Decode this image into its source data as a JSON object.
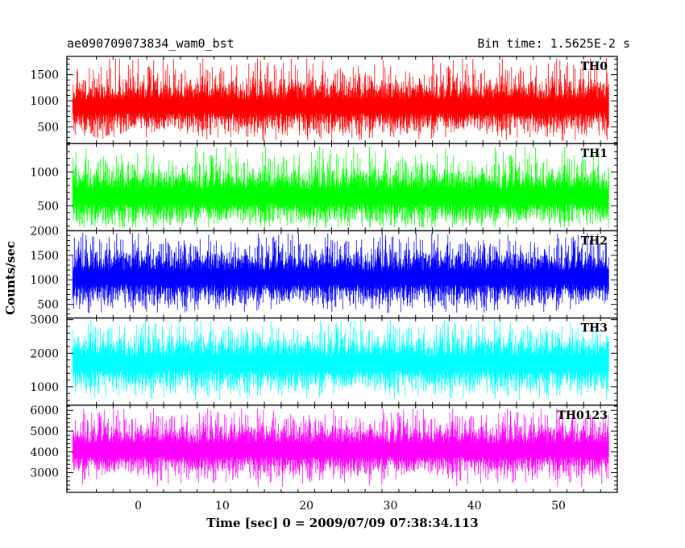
{
  "chart_data": {
    "type": "line",
    "title": "ae090709073834_wam0_bst",
    "subtitle": "Bin time: 1.5625E-2 s",
    "xlabel": "Time [sec] 0 = 2009/07/09 07:38:34.113",
    "ylabel": "Counts/sec",
    "xlim": [
      -8.5,
      57
    ],
    "x_data_range": [
      -7.8,
      56
    ],
    "xticks": [
      0,
      10,
      20,
      30,
      40,
      50
    ],
    "grid": false,
    "panels": [
      {
        "name": "TH0",
        "color": "#ff0000",
        "ylim": [
          180,
          1850
        ],
        "yticks": [
          500,
          1000,
          1500
        ],
        "center": 900,
        "spread": 210,
        "floor": 150,
        "peak_max": 1820,
        "low_min": 230
      },
      {
        "name": "TH1",
        "color": "#00ff00",
        "ylim": [
          130,
          1420
        ],
        "yticks": [
          500,
          1000
        ],
        "center": 640,
        "spread": 170,
        "floor": 100,
        "peak_max": 1380,
        "low_min": 180
      },
      {
        "name": "TH2",
        "color": "#0000ff",
        "ylim": [
          220,
          2000
        ],
        "yticks": [
          500,
          1000,
          1500,
          2000
        ],
        "center": 1050,
        "spread": 230,
        "floor": 200,
        "peak_max": 1960,
        "low_min": 320
      },
      {
        "name": "TH3",
        "color": "#00ffff",
        "ylim": [
          450,
          3050
        ],
        "yticks": [
          1000,
          2000,
          3000
        ],
        "center": 1700,
        "spread": 330,
        "floor": 400,
        "peak_max": 3000,
        "low_min": 600
      },
      {
        "name": "TH0123",
        "color": "#ff00ff",
        "ylim": [
          2050,
          6250
        ],
        "yticks": [
          3000,
          4000,
          5000,
          6000
        ],
        "center": 4100,
        "spread": 500,
        "floor": 2000,
        "peak_max": 6100,
        "low_min": 2300
      }
    ]
  }
}
